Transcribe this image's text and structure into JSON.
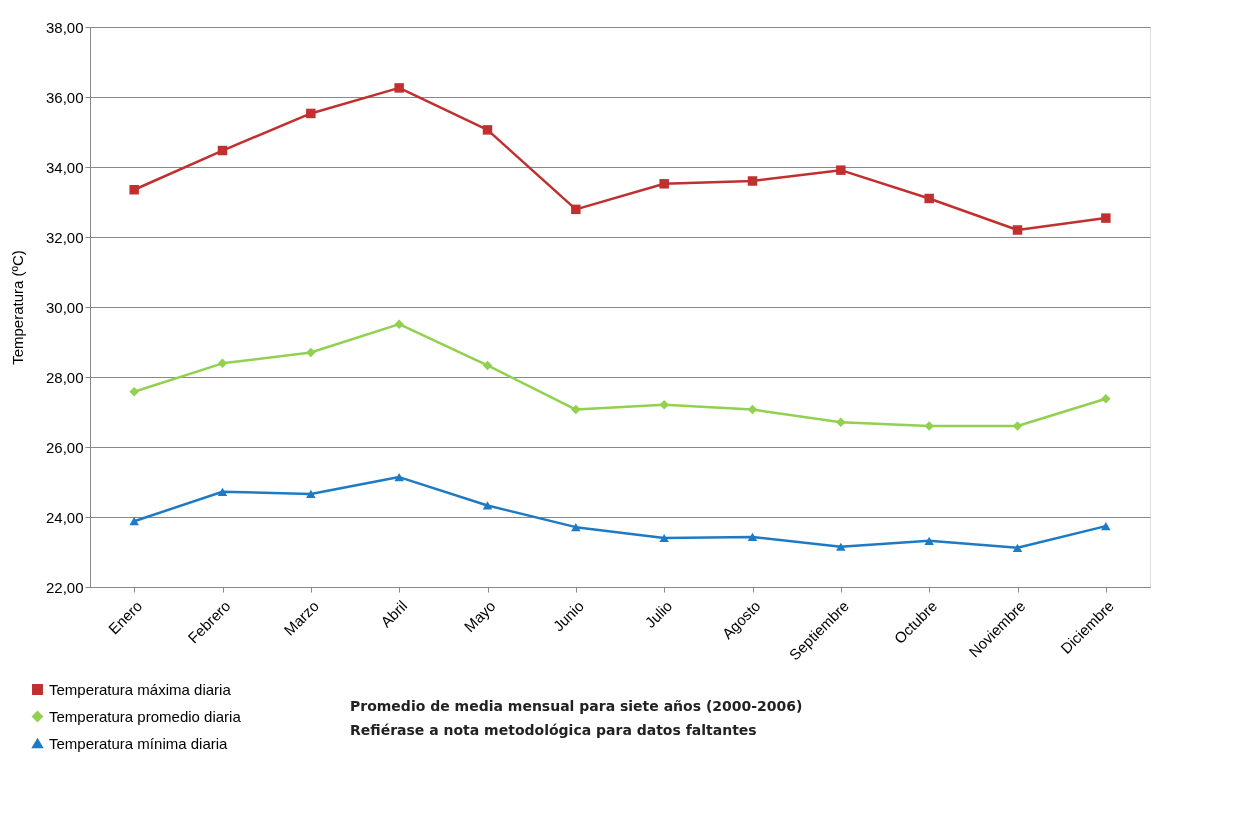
{
  "chart_data": {
    "type": "line",
    "ylabel": "Temperatura (ºC)",
    "categories": [
      "Enero",
      "Febrero",
      "Marzo",
      "Abril",
      "Mayo",
      "Junio",
      "Julio",
      "Agosto",
      "Septiembre",
      "Octubre",
      "Noviembre",
      "Diciembre"
    ],
    "series": [
      {
        "name": "Temperatura máxima diaria",
        "color": "#c0302f",
        "marker": "square",
        "values": [
          33.35,
          34.47,
          35.53,
          36.26,
          35.06,
          32.79,
          33.52,
          33.6,
          33.91,
          33.1,
          32.2,
          32.54
        ]
      },
      {
        "name": "Temperatura promedio diaria",
        "color": "#92d050",
        "marker": "diamond",
        "values": [
          27.58,
          28.39,
          28.7,
          29.51,
          28.33,
          27.07,
          27.21,
          27.07,
          26.71,
          26.6,
          26.6,
          27.38
        ]
      },
      {
        "name": "Temperatura mínima diaria",
        "color": "#1f7ac4",
        "marker": "triangle",
        "values": [
          23.88,
          24.72,
          24.66,
          25.14,
          24.33,
          23.71,
          23.4,
          23.43,
          23.15,
          23.32,
          23.12,
          23.74
        ]
      }
    ],
    "ylim": [
      22,
      38
    ],
    "yticks": [
      {
        "value": 22,
        "label": "22,00"
      },
      {
        "value": 24,
        "label": "24,00"
      },
      {
        "value": 26,
        "label": "26,00"
      },
      {
        "value": 28,
        "label": "28,00"
      },
      {
        "value": 30,
        "label": "30,00"
      },
      {
        "value": 32,
        "label": "32,00"
      },
      {
        "value": 34,
        "label": "34,00"
      },
      {
        "value": 36,
        "label": "36,00"
      },
      {
        "value": 38,
        "label": "38,00"
      }
    ],
    "grid": "y",
    "legend": "bottom left",
    "line_style": "solid",
    "annotations": [
      "Promedio de media mensual para siete años (2000-2006)",
      "Refiérase a nota metodológica para datos faltantes"
    ]
  }
}
